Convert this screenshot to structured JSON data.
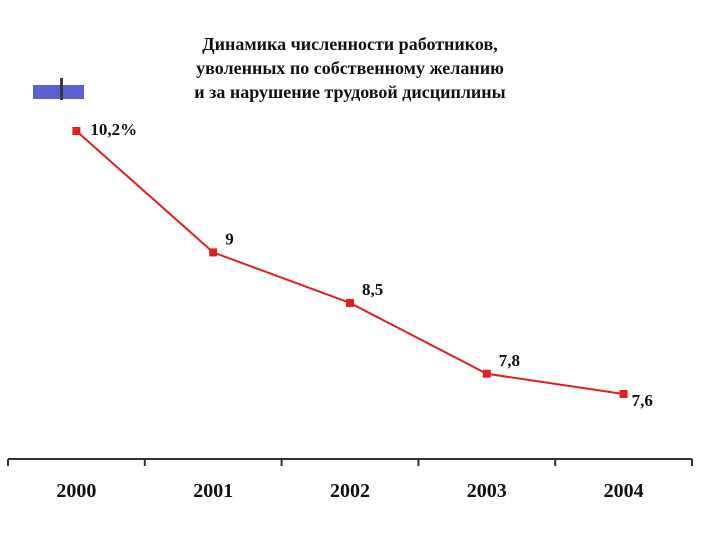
{
  "title_lines": [
    "Динамика численности работников,",
    "уволенных по собственному желанию",
    "и за нарушение трудовой дисциплины"
  ],
  "chart_data": {
    "type": "line",
    "title": "Динамика численности работников, уволенных по собственному желанию и за нарушение трудовой дисциплины",
    "categories": [
      "2000",
      "2001",
      "2002",
      "2003",
      "2004"
    ],
    "values": [
      10.2,
      9,
      8.5,
      7.8,
      7.6
    ],
    "data_labels": [
      "10,2%",
      "9",
      "8,5",
      "7,8",
      "7,6"
    ],
    "xlabel": "",
    "ylabel": "",
    "grid": false,
    "legend": "none",
    "line_color": "#e02020",
    "marker_color": "#e02020"
  }
}
